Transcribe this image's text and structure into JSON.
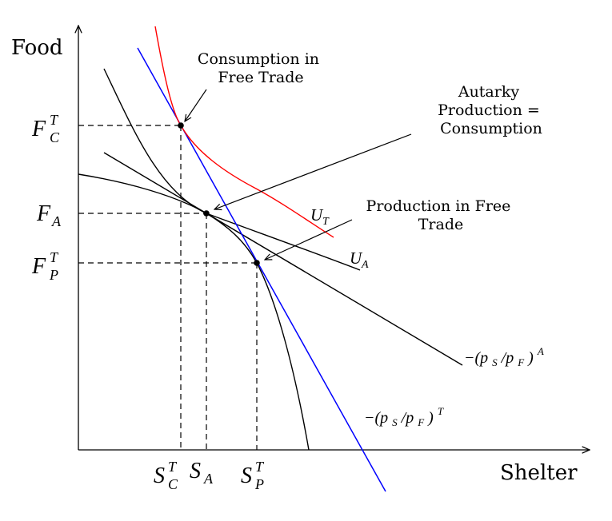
{
  "axes": {
    "y_label": "Food",
    "x_label": "Shelter"
  },
  "points": {
    "consumption_free_trade": {
      "x_label": {
        "base": "S",
        "sup": "T",
        "sub": "C"
      },
      "y_label": {
        "base": "F",
        "sup": "T",
        "sub": "C"
      }
    },
    "autarky": {
      "x_label": {
        "base": "S",
        "sub": "A"
      },
      "y_label": {
        "base": "F",
        "sub": "A"
      }
    },
    "production_free_trade": {
      "x_label": {
        "base": "S",
        "sup": "T",
        "sub": "P"
      },
      "y_label": {
        "base": "F",
        "sup": "T",
        "sub": "P"
      }
    }
  },
  "annotations": {
    "consumption_free_trade": [
      "Consumption in",
      "Free Trade"
    ],
    "autarky": [
      "Autarky",
      "Production =",
      "Consumption"
    ],
    "production_free_trade": [
      "Production in Free",
      "Trade"
    ]
  },
  "curve_labels": {
    "ut": {
      "base": "U",
      "sub": "T"
    },
    "ua": {
      "base": "U",
      "sub": "A"
    },
    "price_autarky": {
      "prefix": "−(p",
      "s_sub": "S",
      "slash": "/p",
      "f_sub": "F",
      "close": ")",
      "sup": "A"
    },
    "price_trade": {
      "prefix": "−(p",
      "s_sub": "S",
      "slash": "/p",
      "f_sub": "F",
      "close": ")",
      "sup": "T"
    }
  },
  "colors": {
    "axis": "#000000",
    "ppf": "#000000",
    "autarky_price_line": "#000000",
    "trade_price_line": "#0000ff",
    "indifference_ut": "#ff0000",
    "indifference_ua": "#000000"
  }
}
